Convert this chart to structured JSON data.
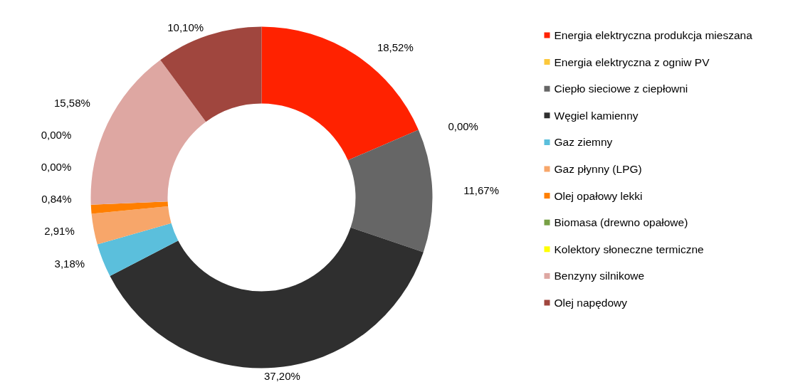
{
  "chart_data": {
    "type": "donut",
    "categories": [
      "Energia elektryczna produkcja mieszana",
      "Energia elektryczna z ogniw PV",
      "Ciepło sieciowe z ciepłowni",
      "Węgiel kamienny",
      "Gaz ziemny",
      "Gaz płynny (LPG)",
      "Olej opałowy lekki",
      "Biomasa (drewno opałowe)",
      "Kolektory słoneczne termiczne",
      "Benzyny silnikowe",
      "Olej napędowy"
    ],
    "values": [
      18.52,
      0.0,
      11.67,
      37.2,
      3.18,
      2.91,
      0.84,
      0.0,
      0.0,
      15.58,
      10.1
    ],
    "value_labels": [
      "18,52%",
      "0,00%",
      "11,67%",
      "37,20%",
      "3,18%",
      "2,91%",
      "0,84%",
      "0,00%",
      "0,00%",
      "15,58%",
      "10,10%"
    ],
    "colors": [
      "#ff2200",
      "#fcc83c",
      "#666666",
      "#2f2f2f",
      "#5bbfdc",
      "#f7a66a",
      "#ff7f00",
      "#77a045",
      "#ffff00",
      "#dea7a2",
      "#a0463e"
    ],
    "legend": "right"
  }
}
